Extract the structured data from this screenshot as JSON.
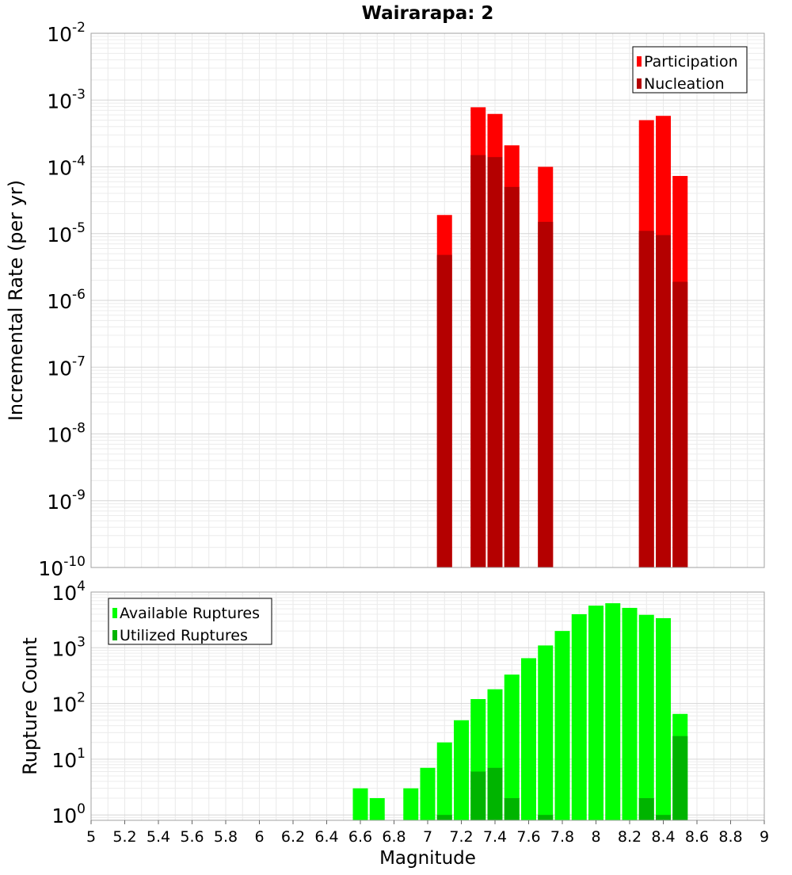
{
  "chart_data": [
    {
      "type": "bar",
      "title": "Wairarapa: 2",
      "xlabel": "",
      "ylabel": "Incremental Rate (per yr)",
      "x_range": [
        5,
        9
      ],
      "y_scale": "log",
      "ylim": [
        1e-10,
        0.01
      ],
      "y_tick_exponents": [
        -10,
        -9,
        -8,
        -7,
        -6,
        -5,
        -4,
        -3,
        -2
      ],
      "grid": true,
      "legend_position": "top-right",
      "series": [
        {
          "name": "Participation",
          "color": "#ff0000",
          "x": [
            7.1,
            7.3,
            7.4,
            7.5,
            7.7,
            8.3,
            8.4,
            8.5
          ],
          "values": [
            1.9e-05,
            0.00078,
            0.00062,
            0.00021,
            0.0001,
            0.0005,
            0.00058,
            7.3e-05
          ]
        },
        {
          "name": "Nucleation",
          "color": "#b40000",
          "x": [
            7.1,
            7.3,
            7.4,
            7.5,
            7.7,
            8.3,
            8.4,
            8.5
          ],
          "values": [
            4.8e-06,
            0.00015,
            0.00014,
            5e-05,
            1.5e-05,
            1.1e-05,
            9.5e-06,
            1.9e-06
          ]
        }
      ]
    },
    {
      "type": "bar",
      "title": "",
      "xlabel": "Magnitude",
      "ylabel": "Rupture Count",
      "x_range": [
        5,
        9
      ],
      "x_ticks": [
        "5",
        "5.2",
        "5.4",
        "5.6",
        "5.8",
        "6",
        "6.2",
        "6.4",
        "6.6",
        "6.8",
        "7",
        "7.2",
        "7.4",
        "7.6",
        "7.8",
        "8",
        "8.2",
        "8.4",
        "8.6",
        "8.8",
        "9"
      ],
      "y_scale": "log",
      "ylim": [
        0.8,
        10000
      ],
      "y_tick_exponents": [
        0,
        1,
        2,
        3,
        4
      ],
      "grid": true,
      "legend_position": "top-left",
      "series": [
        {
          "name": "Available Ruptures",
          "color": "#00ff00",
          "x": [
            6.6,
            6.7,
            6.9,
            7.0,
            7.1,
            7.2,
            7.3,
            7.4,
            7.5,
            7.6,
            7.7,
            7.8,
            7.9,
            8.0,
            8.1,
            8.2,
            8.3,
            8.4,
            8.5
          ],
          "values": [
            3,
            2,
            3,
            7,
            20,
            50,
            120,
            180,
            330,
            650,
            1100,
            2000,
            4000,
            5700,
            6300,
            5200,
            3900,
            3400,
            65
          ]
        },
        {
          "name": "Utilized Ruptures",
          "color": "#00b400",
          "x": [
            7.1,
            7.3,
            7.4,
            7.5,
            7.7,
            8.3,
            8.4,
            8.5
          ],
          "values": [
            1,
            6,
            7,
            2,
            1,
            2,
            1,
            26
          ]
        }
      ]
    }
  ]
}
